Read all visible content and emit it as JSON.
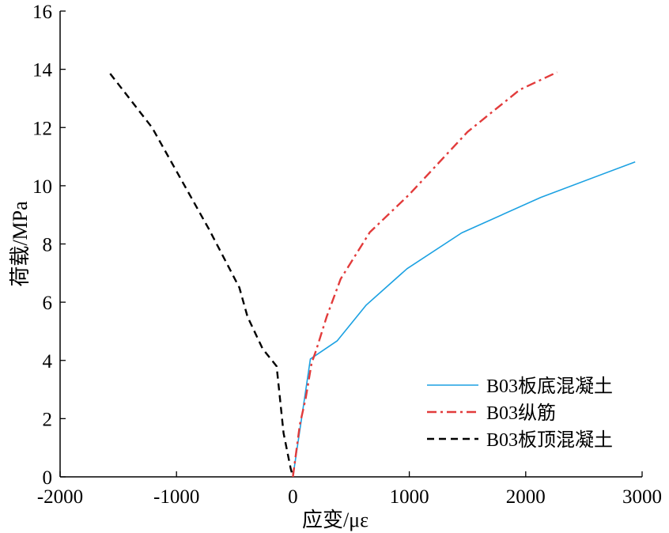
{
  "chart_data": {
    "type": "line",
    "xlabel": "应变/με",
    "ylabel": "荷载/MPa",
    "xlim": [
      -2000,
      3000
    ],
    "ylim": [
      0,
      16
    ],
    "xticks": [
      -2000,
      -1000,
      0,
      1000,
      2000,
      3000
    ],
    "yticks": [
      0,
      2,
      4,
      6,
      8,
      10,
      12,
      14,
      16
    ],
    "xtick_labels": [
      "-2000",
      "-1000",
      "0",
      "1000",
      "2000",
      "3000"
    ],
    "ytick_labels": [
      "0",
      "2",
      "4",
      "6",
      "8",
      "10",
      "12",
      "14",
      "16"
    ],
    "grid": false,
    "legend_position": "bottom-right",
    "series": [
      {
        "name": "B03板底混凝土",
        "color": "#1ba1e2",
        "dash": "solid",
        "x": [
          0,
          150,
          380,
          630,
          980,
          1450,
          2130,
          2940
        ],
        "y": [
          0,
          4.05,
          4.67,
          5.9,
          7.15,
          8.38,
          9.6,
          10.82
        ]
      },
      {
        "name": "B03纵筋",
        "color": "#e23b3b",
        "dash": "dashdot",
        "x": [
          0,
          60,
          110,
          160,
          200,
          290,
          410,
          660,
          1000,
          1500,
          1950,
          2270
        ],
        "y": [
          0,
          1.8,
          2.7,
          3.9,
          4.35,
          5.5,
          6.8,
          8.4,
          9.7,
          11.85,
          13.3,
          13.9
        ],
        "markers_x": [],
        "markers_y": []
      },
      {
        "name": "B03板顶混凝土",
        "color": "#000000",
        "dash": "dashed",
        "x": [
          -1570,
          -1210,
          -720,
          -460,
          -390,
          -260,
          -140,
          -80,
          -20,
          0
        ],
        "y": [
          13.85,
          12.0,
          8.5,
          6.5,
          5.5,
          4.4,
          3.8,
          1.5,
          0.3,
          0
        ],
        "markers_x": [],
        "markers_y": []
      }
    ]
  }
}
